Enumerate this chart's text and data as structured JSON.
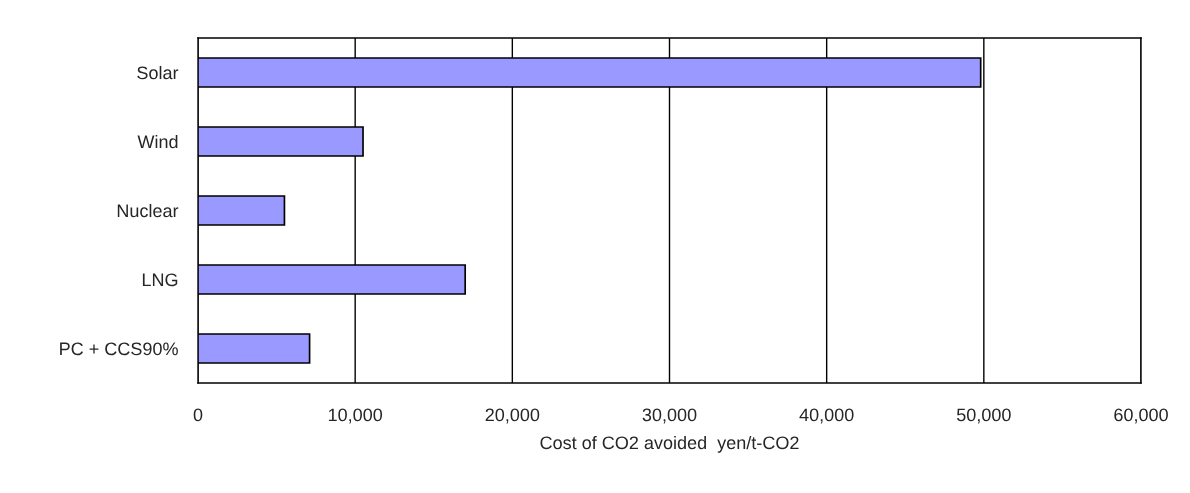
{
  "chart_data": {
    "type": "bar",
    "orientation": "horizontal",
    "xlabel": "Cost of CO2 avoided  yen/t-CO2",
    "categories": [
      "Solar",
      "Wind",
      "Nuclear",
      "LNG",
      "PC + CCS90%"
    ],
    "values": [
      49800,
      10500,
      5500,
      17000,
      7100
    ],
    "color": "#9999ff",
    "xlim": [
      0,
      60000
    ],
    "xticks": [
      {
        "value": 0,
        "label": "0"
      },
      {
        "value": 10000,
        "label": "10,000"
      },
      {
        "value": 20000,
        "label": "20,000"
      },
      {
        "value": 30000,
        "label": "30,000"
      },
      {
        "value": 40000,
        "label": "40,000"
      },
      {
        "value": 50000,
        "label": "50,000"
      },
      {
        "value": 60000,
        "label": "60,000"
      }
    ],
    "grid": "x",
    "legend": false
  }
}
